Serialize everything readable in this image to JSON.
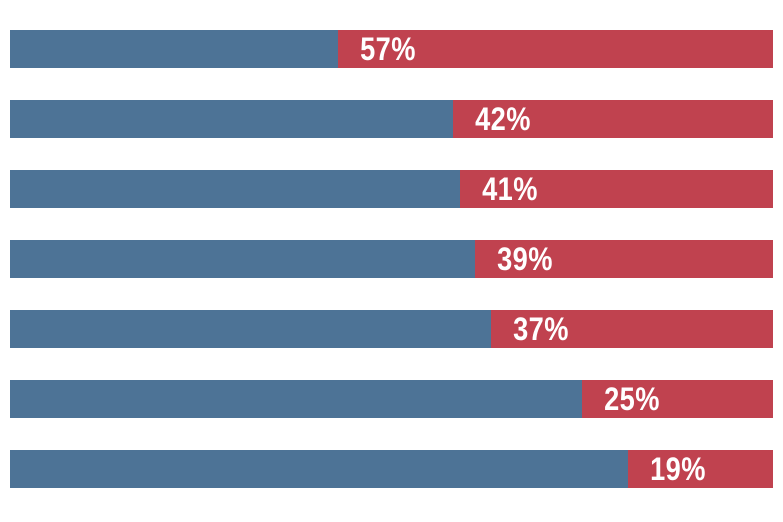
{
  "chart_data": {
    "type": "bar",
    "orientation": "horizontal",
    "stacked": true,
    "title": "",
    "xlabel": "",
    "ylabel": "",
    "xlim": [
      0,
      100
    ],
    "grid": false,
    "axes_visible": false,
    "legend_position": "none",
    "bar_count": 7,
    "bars": [
      {
        "value": 57,
        "remainder": 43,
        "label": "57%"
      },
      {
        "value": 42,
        "remainder": 58,
        "label": "42%"
      },
      {
        "value": 41,
        "remainder": 59,
        "label": "41%"
      },
      {
        "value": 39,
        "remainder": 61,
        "label": "39%"
      },
      {
        "value": 37,
        "remainder": 63,
        "label": "37%"
      },
      {
        "value": 25,
        "remainder": 75,
        "label": "25%"
      },
      {
        "value": 19,
        "remainder": 81,
        "label": "19%"
      }
    ],
    "colors": {
      "blue_segment": "#4d7396",
      "red_segment": "#c0424f",
      "label_text": "#ffffff",
      "background": "#ffffff"
    }
  }
}
